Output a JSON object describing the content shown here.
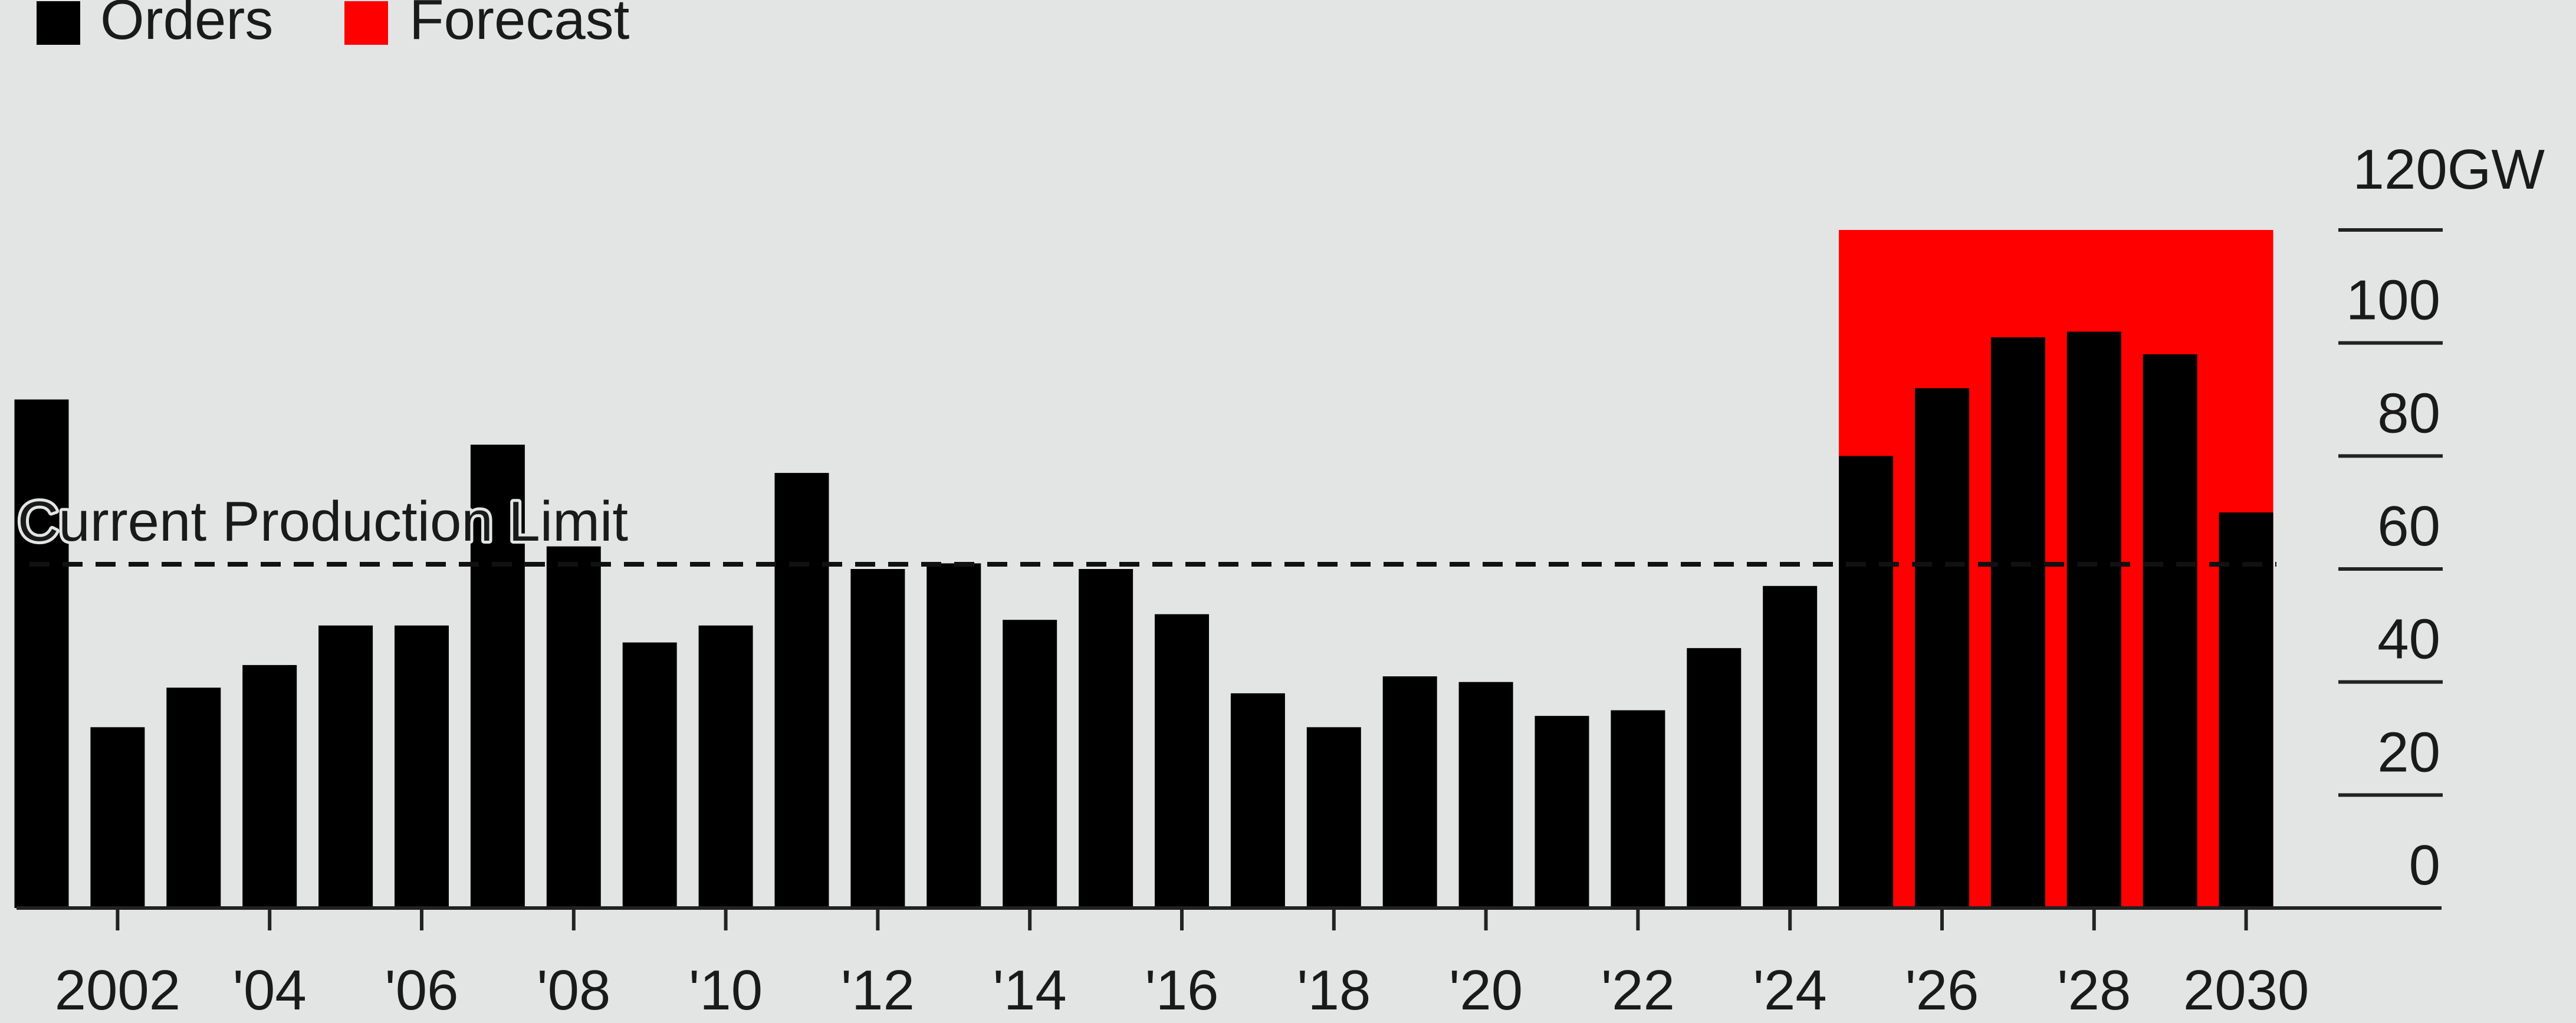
{
  "chart_data": {
    "type": "bar",
    "unit": "GW",
    "legend": [
      {
        "label": "Orders",
        "color": "#000000"
      },
      {
        "label": "Forecast",
        "color": "#ff0000"
      }
    ],
    "x": [
      2001,
      2002,
      2003,
      2004,
      2005,
      2006,
      2007,
      2008,
      2009,
      2010,
      2011,
      2012,
      2013,
      2014,
      2015,
      2016,
      2017,
      2018,
      2019,
      2020,
      2021,
      2022,
      2023,
      2024,
      2025,
      2026,
      2027,
      2028,
      2029,
      2030
    ],
    "values": [
      90,
      32,
      39,
      43,
      50,
      50,
      82,
      64,
      47,
      50,
      77,
      60,
      61,
      51,
      60,
      52,
      38,
      32,
      41,
      40,
      34,
      35,
      46,
      57,
      80,
      92,
      101,
      102,
      98,
      70
    ],
    "forecast_from": 2025,
    "x_tick_labels": [
      {
        "x": 2002,
        "label": "2002"
      },
      {
        "x": 2004,
        "label": "'04"
      },
      {
        "x": 2006,
        "label": "'06"
      },
      {
        "x": 2008,
        "label": "'08"
      },
      {
        "x": 2010,
        "label": "'10"
      },
      {
        "x": 2012,
        "label": "'12"
      },
      {
        "x": 2014,
        "label": "'14"
      },
      {
        "x": 2016,
        "label": "'16"
      },
      {
        "x": 2018,
        "label": "'18"
      },
      {
        "x": 2020,
        "label": "'20"
      },
      {
        "x": 2022,
        "label": "'22"
      },
      {
        "x": 2024,
        "label": "'24"
      },
      {
        "x": 2026,
        "label": "'26"
      },
      {
        "x": 2028,
        "label": "'28"
      },
      {
        "x": 2030,
        "label": "2030"
      }
    ],
    "y_ticks": [
      0,
      20,
      40,
      60,
      80,
      100,
      120
    ],
    "y_top_label": "120GW",
    "ylim": [
      0,
      120
    ],
    "reference_line": {
      "label": "Current Production Limit",
      "value": 60
    },
    "axis_position": "right",
    "legend_position": "top-left",
    "grid": false
  }
}
